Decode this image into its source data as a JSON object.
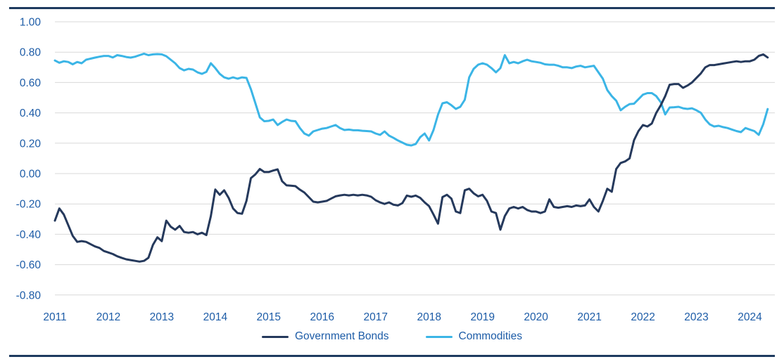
{
  "colors": {
    "government_bonds": "#25395C",
    "commodities": "#3BB5E6",
    "axis_label": "#1D5CA7",
    "gridline": "#D9D9D9",
    "border_rule": "#1E3A5F",
    "background": "#FFFFFF"
  },
  "chart_data": {
    "type": "line",
    "title": "",
    "xlabel": "",
    "ylabel": "",
    "grid": true,
    "legend_position": "bottom",
    "ylim": [
      -0.8,
      1.0
    ],
    "y_ticks": [
      "1.00",
      "0.80",
      "0.60",
      "0.40",
      "0.20",
      "0.00",
      "-0.20",
      "-0.40",
      "-0.60",
      "-0.80"
    ],
    "x_ticks": [
      "2011",
      "2012",
      "2013",
      "2014",
      "2015",
      "2016",
      "2017",
      "2018",
      "2019",
      "2020",
      "2021",
      "2022",
      "2023",
      "2024"
    ],
    "x_frequency": "monthly",
    "x_start": "2011-01",
    "x_end": "2024-05",
    "series": [
      {
        "name": "Government Bonds",
        "color": "#25395C",
        "values": [
          -0.31,
          -0.23,
          -0.27,
          -0.34,
          -0.41,
          -0.45,
          -0.445,
          -0.45,
          -0.465,
          -0.48,
          -0.49,
          -0.51,
          -0.52,
          -0.53,
          -0.545,
          -0.555,
          -0.565,
          -0.57,
          -0.575,
          -0.58,
          -0.575,
          -0.555,
          -0.47,
          -0.42,
          -0.445,
          -0.31,
          -0.35,
          -0.37,
          -0.345,
          -0.385,
          -0.39,
          -0.385,
          -0.4,
          -0.39,
          -0.405,
          -0.28,
          -0.105,
          -0.14,
          -0.11,
          -0.16,
          -0.23,
          -0.26,
          -0.265,
          -0.18,
          -0.03,
          -0.005,
          0.03,
          0.01,
          0.01,
          0.02,
          0.028,
          -0.05,
          -0.078,
          -0.08,
          -0.083,
          -0.106,
          -0.125,
          -0.155,
          -0.185,
          -0.19,
          -0.185,
          -0.18,
          -0.165,
          -0.15,
          -0.144,
          -0.14,
          -0.144,
          -0.14,
          -0.144,
          -0.14,
          -0.144,
          -0.153,
          -0.176,
          -0.19,
          -0.2,
          -0.19,
          -0.205,
          -0.21,
          -0.195,
          -0.145,
          -0.153,
          -0.145,
          -0.16,
          -0.19,
          -0.215,
          -0.27,
          -0.33,
          -0.155,
          -0.14,
          -0.165,
          -0.25,
          -0.26,
          -0.11,
          -0.1,
          -0.13,
          -0.15,
          -0.14,
          -0.18,
          -0.25,
          -0.26,
          -0.37,
          -0.28,
          -0.23,
          -0.22,
          -0.23,
          -0.22,
          -0.24,
          -0.25,
          -0.25,
          -0.26,
          -0.25,
          -0.17,
          -0.22,
          -0.225,
          -0.22,
          -0.215,
          -0.22,
          -0.21,
          -0.215,
          -0.21,
          -0.17,
          -0.22,
          -0.25,
          -0.18,
          -0.1,
          -0.12,
          0.03,
          0.07,
          0.08,
          0.1,
          0.22,
          0.28,
          0.32,
          0.31,
          0.33,
          0.4,
          0.45,
          0.51,
          0.585,
          0.59,
          0.59,
          0.565,
          0.58,
          0.6,
          0.63,
          0.66,
          0.7,
          0.715,
          0.715,
          0.72,
          0.725,
          0.73,
          0.735,
          0.74,
          0.735,
          0.74,
          0.74,
          0.75,
          0.775,
          0.785,
          0.765
        ]
      },
      {
        "name": "Commodities",
        "color": "#3BB5E6",
        "values": [
          0.745,
          0.73,
          0.74,
          0.735,
          0.72,
          0.735,
          0.727,
          0.75,
          0.757,
          0.764,
          0.77,
          0.775,
          0.775,
          0.765,
          0.78,
          0.775,
          0.768,
          0.764,
          0.77,
          0.78,
          0.79,
          0.78,
          0.785,
          0.787,
          0.785,
          0.773,
          0.75,
          0.727,
          0.695,
          0.68,
          0.69,
          0.685,
          0.667,
          0.657,
          0.67,
          0.727,
          0.695,
          0.657,
          0.634,
          0.625,
          0.634,
          0.625,
          0.634,
          0.63,
          0.556,
          0.463,
          0.37,
          0.345,
          0.347,
          0.356,
          0.32,
          0.34,
          0.356,
          0.347,
          0.345,
          0.3,
          0.264,
          0.25,
          0.278,
          0.287,
          0.296,
          0.3,
          0.31,
          0.32,
          0.3,
          0.287,
          0.29,
          0.285,
          0.285,
          0.282,
          0.28,
          0.278,
          0.264,
          0.255,
          0.278,
          0.25,
          0.235,
          0.218,
          0.204,
          0.19,
          0.185,
          0.195,
          0.24,
          0.264,
          0.218,
          0.287,
          0.389,
          0.463,
          0.47,
          0.45,
          0.426,
          0.44,
          0.486,
          0.634,
          0.69,
          0.717,
          0.727,
          0.717,
          0.695,
          0.667,
          0.695,
          0.78,
          0.727,
          0.735,
          0.727,
          0.74,
          0.75,
          0.74,
          0.735,
          0.73,
          0.72,
          0.717,
          0.717,
          0.71,
          0.7,
          0.7,
          0.695,
          0.705,
          0.71,
          0.7,
          0.705,
          0.71,
          0.667,
          0.625,
          0.55,
          0.51,
          0.48,
          0.417,
          0.44,
          0.458,
          0.46,
          0.49,
          0.52,
          0.53,
          0.53,
          0.51,
          0.47,
          0.39,
          0.435,
          0.437,
          0.44,
          0.43,
          0.426,
          0.43,
          0.417,
          0.4,
          0.356,
          0.324,
          0.31,
          0.315,
          0.306,
          0.3,
          0.29,
          0.28,
          0.273,
          0.3,
          0.29,
          0.28,
          0.255,
          0.325,
          0.425
        ]
      }
    ]
  }
}
